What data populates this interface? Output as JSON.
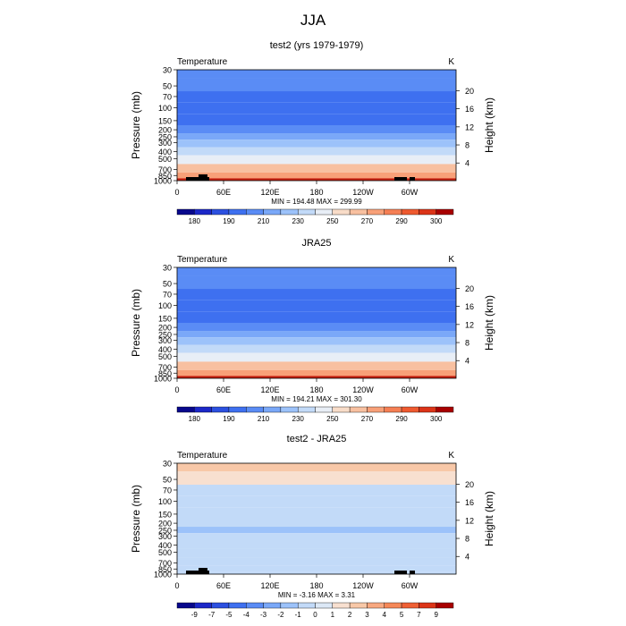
{
  "figure_title": "JJA",
  "chart_data": [
    {
      "type": "heatmap",
      "title": "test2 (yrs 1979-1979)",
      "variable_label": "Temperature",
      "units_label": "K",
      "ylabel": "Pressure (mb)",
      "ylabel_right": "Height (km)",
      "x_ticks": [
        "0",
        "60E",
        "120E",
        "180",
        "120W",
        "60W"
      ],
      "y_ticks": [
        "30",
        "50",
        "70",
        "100",
        "150",
        "200",
        "250",
        "300",
        "400",
        "500",
        "700",
        "850",
        "1000"
      ],
      "y_ticks_right": [
        "20",
        "16",
        "12",
        "8",
        "4"
      ],
      "stats": "MIN = 194.48   MAX = 299.99",
      "min": 194.48,
      "max": 299.99,
      "colorbar_labels": [
        "180",
        "190",
        "210",
        "230",
        "250",
        "270",
        "290",
        "300"
      ],
      "profile": [
        {
          "p": 30,
          "v": 218
        },
        {
          "p": 50,
          "v": 210
        },
        {
          "p": 70,
          "v": 203
        },
        {
          "p": 100,
          "v": 200
        },
        {
          "p": 150,
          "v": 206
        },
        {
          "p": 200,
          "v": 214
        },
        {
          "p": 250,
          "v": 222
        },
        {
          "p": 300,
          "v": 232
        },
        {
          "p": 400,
          "v": 246
        },
        {
          "p": 500,
          "v": 256
        },
        {
          "p": 700,
          "v": 272
        },
        {
          "p": 850,
          "v": 284
        },
        {
          "p": 1000,
          "v": 296
        }
      ]
    },
    {
      "type": "heatmap",
      "title": "JRA25",
      "variable_label": "Temperature",
      "units_label": "K",
      "ylabel": "Pressure (mb)",
      "ylabel_right": "Height (km)",
      "x_ticks": [
        "0",
        "60E",
        "120E",
        "180",
        "120W",
        "60W"
      ],
      "y_ticks": [
        "30",
        "50",
        "70",
        "100",
        "150",
        "200",
        "250",
        "300",
        "400",
        "500",
        "700",
        "850",
        "1000"
      ],
      "y_ticks_right": [
        "20",
        "16",
        "12",
        "8",
        "4"
      ],
      "stats": "MIN = 194.21   MAX = 301.30",
      "min": 194.21,
      "max": 301.3,
      "colorbar_labels": [
        "180",
        "190",
        "210",
        "230",
        "250",
        "270",
        "290",
        "300"
      ],
      "profile": [
        {
          "p": 30,
          "v": 218
        },
        {
          "p": 50,
          "v": 210
        },
        {
          "p": 70,
          "v": 203
        },
        {
          "p": 100,
          "v": 200
        },
        {
          "p": 150,
          "v": 206
        },
        {
          "p": 200,
          "v": 214
        },
        {
          "p": 250,
          "v": 222
        },
        {
          "p": 300,
          "v": 232
        },
        {
          "p": 400,
          "v": 246
        },
        {
          "p": 500,
          "v": 256
        },
        {
          "p": 700,
          "v": 272
        },
        {
          "p": 850,
          "v": 284
        },
        {
          "p": 1000,
          "v": 297
        }
      ]
    },
    {
      "type": "heatmap",
      "title": "test2 - JRA25",
      "variable_label": "Temperature",
      "units_label": "K",
      "ylabel": "Pressure (mb)",
      "ylabel_right": "Height (km)",
      "x_ticks": [
        "0",
        "60E",
        "120E",
        "180",
        "120W",
        "60W"
      ],
      "y_ticks": [
        "30",
        "50",
        "70",
        "100",
        "150",
        "200",
        "250",
        "300",
        "400",
        "500",
        "700",
        "850",
        "1000"
      ],
      "y_ticks_right": [
        "20",
        "16",
        "12",
        "8",
        "4"
      ],
      "stats": "MIN =   -3.16   MAX =    3.31",
      "min": -3.16,
      "max": 3.31,
      "colorbar_labels": [
        "-9",
        "-7",
        "-5",
        "-4",
        "-3",
        "-2",
        "-1",
        "0",
        "1",
        "2",
        "3",
        "4",
        "5",
        "7",
        "9"
      ],
      "profile": [
        {
          "p": 30,
          "v": 2.5
        },
        {
          "p": 50,
          "v": 1.5
        },
        {
          "p": 70,
          "v": -0.5
        },
        {
          "p": 100,
          "v": -0.5
        },
        {
          "p": 150,
          "v": -0.5
        },
        {
          "p": 200,
          "v": -0.5
        },
        {
          "p": 250,
          "v": -1.5
        },
        {
          "p": 300,
          "v": -0.5
        },
        {
          "p": 400,
          "v": -0.5
        },
        {
          "p": 500,
          "v": -0.5
        },
        {
          "p": 700,
          "v": -0.5
        },
        {
          "p": 850,
          "v": -0.5
        },
        {
          "p": 1000,
          "v": -0.5
        }
      ]
    }
  ],
  "colors": {
    "temp_levels": [
      180,
      190,
      200,
      210,
      220,
      230,
      240,
      250,
      260,
      270,
      280,
      290,
      300
    ],
    "temp_palette": [
      "#08088c",
      "#1c28c8",
      "#2c50e0",
      "#3e70f0",
      "#5a8cf5",
      "#7aa8f8",
      "#9cc2fa",
      "#c2daf8",
      "#e8eef6",
      "#f8dcc8",
      "#f8c0a0",
      "#f8a078",
      "#f57f54",
      "#ef5a30",
      "#dc3418",
      "#a80000"
    ],
    "diff_levels": [
      -9,
      -7,
      -5,
      -4,
      -3,
      -2,
      -1,
      0,
      1,
      2,
      3,
      4,
      5,
      7,
      9
    ],
    "diff_palette": [
      "#08088c",
      "#1c28c8",
      "#2c50e0",
      "#3e70f0",
      "#5a8cf5",
      "#7aa8f8",
      "#9cc2fa",
      "#c2daf8",
      "#dce8f6",
      "#f8e0d0",
      "#f8c8a8",
      "#f8a880",
      "#f58858",
      "#ef6034",
      "#dc3418",
      "#a80000"
    ]
  }
}
